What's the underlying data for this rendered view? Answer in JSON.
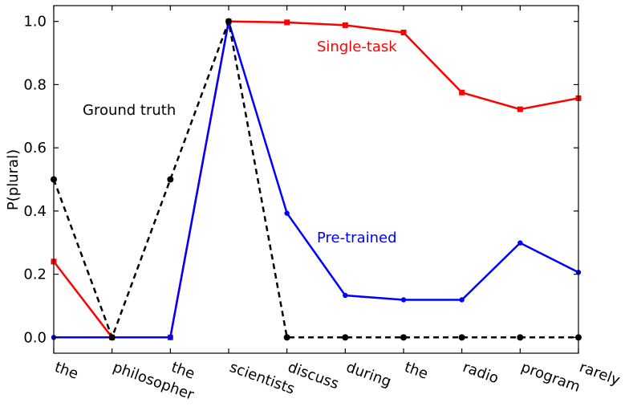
{
  "chart_data": {
    "type": "line",
    "title": "",
    "xlabel": "",
    "ylabel": "P(plural)",
    "categories": [
      "the",
      "philosopher",
      "the",
      "scientists",
      "discuss",
      "during",
      "the",
      "radio",
      "program",
      "rarely"
    ],
    "ylim": [
      -0.05,
      1.05
    ],
    "yticks": [
      0.0,
      0.2,
      0.4,
      0.6,
      0.8,
      1.0
    ],
    "ytick_labels": [
      "0.0",
      "0.2",
      "0.4",
      "0.6",
      "0.8",
      "1.0"
    ],
    "grid": false,
    "legend": "none",
    "series": [
      {
        "name": "Single-task",
        "color": "#ff0000",
        "linestyle": "solid",
        "marker": "square",
        "values": [
          0.24,
          0.0,
          0.0,
          1.0,
          0.997,
          0.988,
          0.965,
          0.775,
          0.722,
          0.757
        ]
      },
      {
        "name": "Pre-trained",
        "color": "#0000ff",
        "linestyle": "solid",
        "marker": "circle",
        "values": [
          0.0,
          0.0,
          0.0,
          1.0,
          0.393,
          0.133,
          0.119,
          0.119,
          0.299,
          0.206
        ]
      },
      {
        "name": "Ground truth",
        "color": "#000000",
        "linestyle": "dashed",
        "marker": "circle",
        "values": [
          0.5,
          0.0,
          0.5,
          1.0,
          0.0,
          0.0,
          0.0,
          0.0,
          0.0,
          0.0
        ]
      }
    ]
  }
}
